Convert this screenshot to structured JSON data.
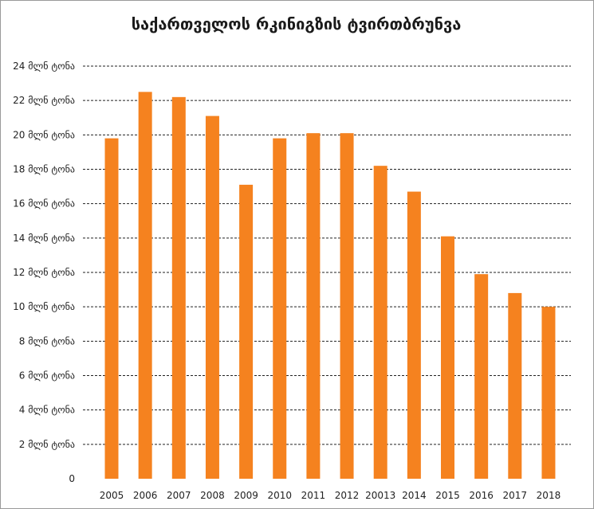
{
  "chart_data": {
    "type": "bar",
    "title": "საქართველოს რკინიგზის ტვირთბრუნვა",
    "xlabel": "",
    "ylabel": "",
    "categories": [
      "2005",
      "2006",
      "2007",
      "2008",
      "2009",
      "2010",
      "2011",
      "2012",
      "20013",
      "2014",
      "2015",
      "2016",
      "2017",
      "2018"
    ],
    "values": [
      19.8,
      22.5,
      22.2,
      21.1,
      17.1,
      19.8,
      20.1,
      20.1,
      18.2,
      16.7,
      14.1,
      11.9,
      10.8,
      10.0
    ],
    "ylim": [
      0,
      24
    ],
    "y_ticks": [
      {
        "value": 0,
        "label": "0"
      },
      {
        "value": 2,
        "label": "2 მლნ ტონა"
      },
      {
        "value": 4,
        "label": "4 მლნ ტონა"
      },
      {
        "value": 6,
        "label": "6 მლნ ტონა"
      },
      {
        "value": 8,
        "label": "8 მლნ ტონა"
      },
      {
        "value": 10,
        "label": "10 მლნ ტონა"
      },
      {
        "value": 12,
        "label": "12 მლნ ტონა"
      },
      {
        "value": 14,
        "label": "14 მლნ ტონა"
      },
      {
        "value": 16,
        "label": "16 მლნ ტონა"
      },
      {
        "value": 18,
        "label": "18 მლნ ტონა"
      },
      {
        "value": 20,
        "label": "20 მლნ ტონა"
      },
      {
        "value": 22,
        "label": "22 მლნ ტონა"
      },
      {
        "value": 24,
        "label": "24 მლნ ტონა"
      }
    ],
    "grid": true,
    "gridline_style": "dashed",
    "legend": false,
    "bar_color": "#F5821F",
    "gridline_color": "#222222",
    "text_color": "#222222"
  }
}
